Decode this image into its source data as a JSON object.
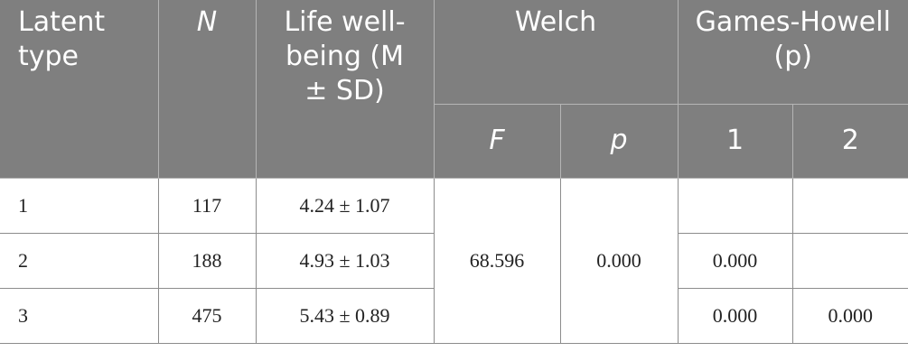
{
  "table": {
    "header": {
      "latent_type": "Latent type",
      "n": "N",
      "life_wellbeing": "Life well-being (M ± SD)",
      "welch": "Welch",
      "welch_f": "F",
      "welch_p": "p",
      "games_howell": "Games-Howell (p)",
      "gh_1": "1",
      "gh_2": "2"
    },
    "welch_f": "68.596",
    "welch_p": "0.000",
    "rows": [
      {
        "type": "1",
        "n": "117",
        "mean_sd": "4.24 ± 1.07"
      },
      {
        "type": "2",
        "n": "188",
        "mean_sd": "4.93 ± 1.03",
        "gh_1": "0.000"
      },
      {
        "type": "3",
        "n": "475",
        "mean_sd": "5.43 ± 0.89",
        "gh_1": "0.000",
        "gh_2": "0.000"
      }
    ]
  }
}
